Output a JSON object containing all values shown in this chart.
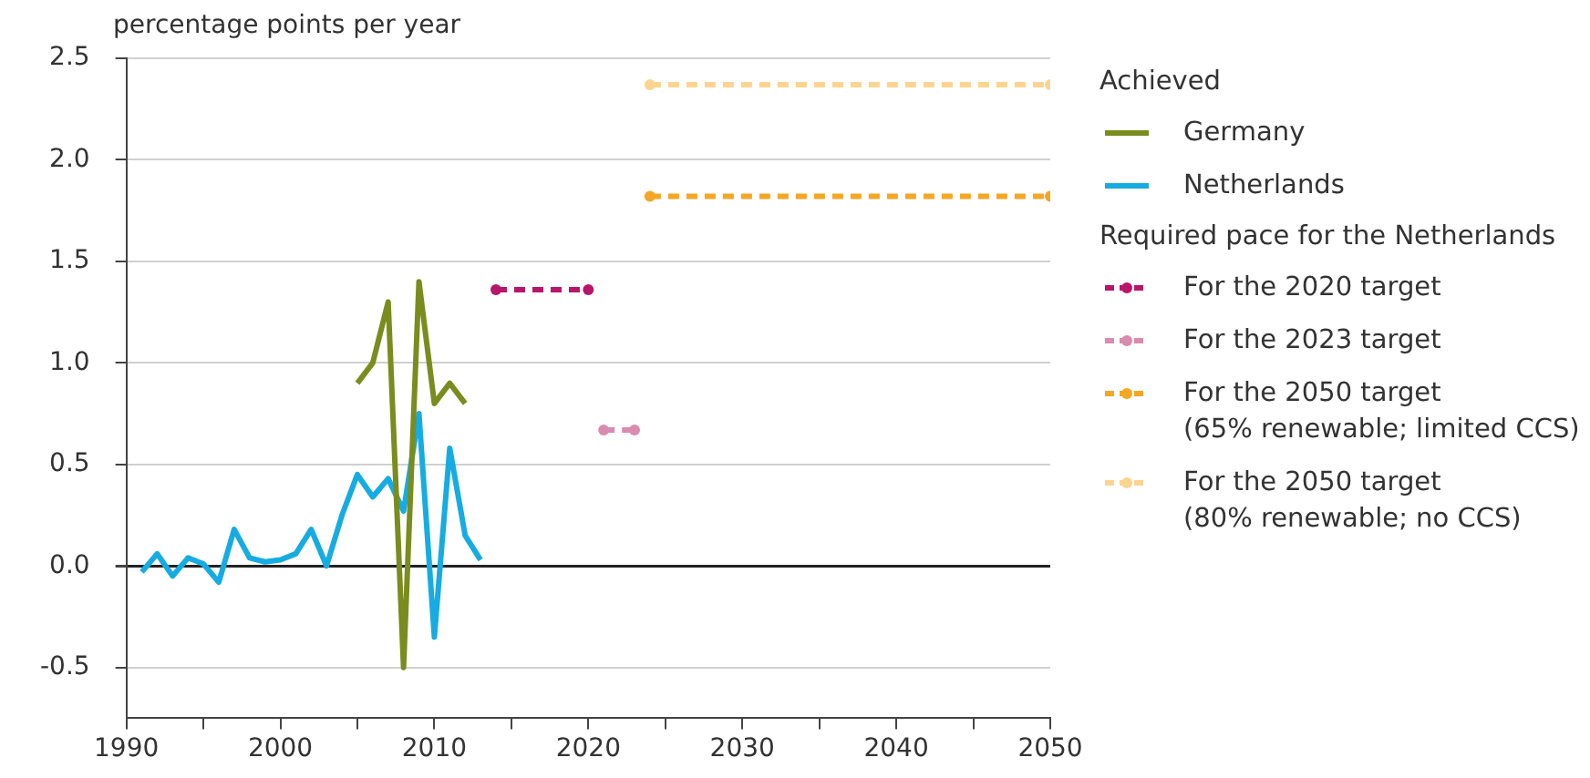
{
  "chart_data": {
    "type": "line",
    "ylabel": "percentage points per year",
    "legend_title": "Achieved",
    "annotations": [
      "Required pace for the Netherlands"
    ],
    "xlim": [
      1990,
      2050
    ],
    "xticks": [
      1990,
      {
        "value": 1995,
        "label": null
      },
      2000,
      {
        "value": 2005,
        "label": null
      },
      2010,
      {
        "value": 2015,
        "label": null
      },
      2020,
      {
        "value": 2025,
        "label": null
      },
      2030,
      {
        "value": 2035,
        "label": null
      },
      2040,
      {
        "value": 2045,
        "label": null
      },
      2050
    ],
    "ylim": [
      -0.75,
      2.5
    ],
    "yticks": [
      {
        "value": -0.5,
        "label": "-0.5"
      },
      {
        "value": 0,
        "label": "0.0"
      },
      {
        "value": 0.5,
        "label": "0.5"
      },
      {
        "value": 1,
        "label": "1.0"
      },
      {
        "value": 1.5,
        "label": "1.5"
      },
      {
        "value": 2,
        "label": "2.0"
      },
      {
        "value": 2.5,
        "label": "2.5"
      }
    ],
    "grid": "y",
    "legend": "right",
    "series": [
      {
        "name": "Germany",
        "color": "#7a8c1e",
        "x": [
          2005,
          2006,
          2007,
          2008,
          2009,
          2010,
          2011,
          2012
        ],
        "values": [
          0.9,
          1.0,
          1.3,
          -0.5,
          1.4,
          0.8,
          0.9,
          0.8
        ]
      },
      {
        "name": "Netherlands",
        "color": "#16ace2",
        "x": [
          1991,
          1992,
          1993,
          1994,
          1995,
          1996,
          1997,
          1998,
          1999,
          2000,
          2001,
          2002,
          2003,
          2004,
          2005,
          2006,
          2007,
          2008,
          2009,
          2010,
          2011,
          2012,
          2013
        ],
        "values": [
          -0.03,
          0.06,
          -0.05,
          0.04,
          0.01,
          -0.08,
          0.18,
          0.04,
          0.02,
          0.03,
          0.06,
          0.18,
          0.0,
          0.25,
          0.45,
          0.34,
          0.43,
          0.27,
          0.75,
          -0.35,
          0.58,
          0.15,
          0.03
        ]
      },
      {
        "name": "For the 2020 target",
        "color": "#b8166b",
        "line_style": "dashed",
        "marker": "circle",
        "x": [
          2014,
          2020
        ],
        "values": [
          1.36,
          1.36
        ]
      },
      {
        "name": "For the 2023 target",
        "color": "#d98bb0",
        "line_style": "dashed",
        "marker": "circle",
        "x": [
          2021,
          2023
        ],
        "values": [
          0.67,
          0.67
        ]
      },
      {
        "name": "For the 2050 target\n(65% renewable; limited CCS)",
        "color": "#f5a623",
        "line_style": "dashed",
        "marker": "circle",
        "x": [
          2024,
          2050
        ],
        "values": [
          1.82,
          1.82
        ]
      },
      {
        "name": "For the 2050 target\n(80% renewable; no CCS)",
        "color": "#fcd48f",
        "line_style": "dashed",
        "marker": "circle",
        "x": [
          2024,
          2050
        ],
        "values": [
          2.37,
          2.37
        ]
      }
    ]
  }
}
